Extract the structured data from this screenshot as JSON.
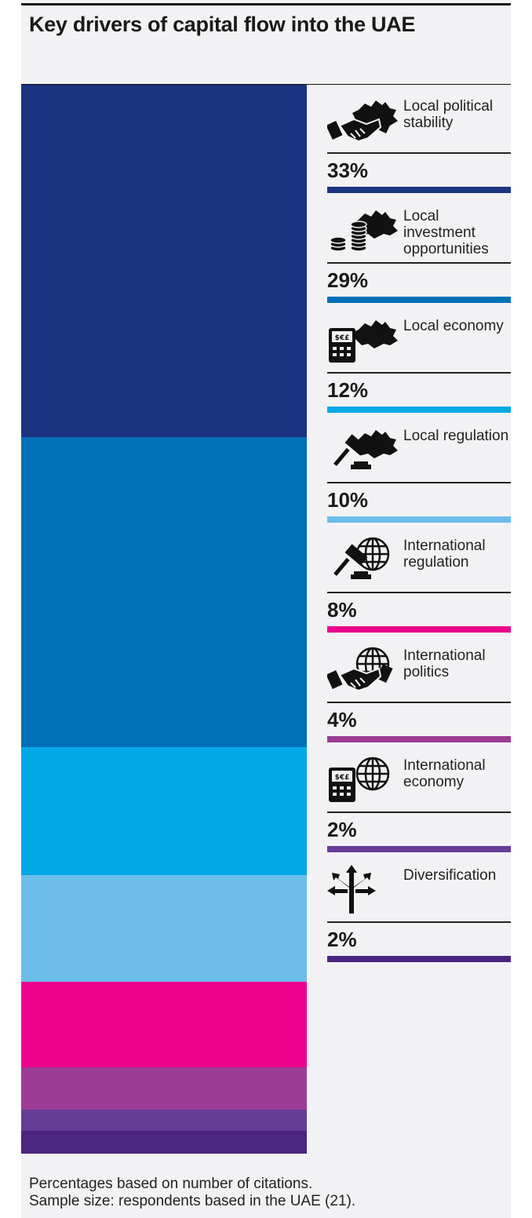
{
  "header": {
    "title": "Key drivers of capital flow into the UAE"
  },
  "colors": {
    "background": "#f2f2f4",
    "series": [
      "#1a3482",
      "#0070b8",
      "#00a9e6",
      "#6cbde9",
      "#ec008c",
      "#9c3c95",
      "#653d97",
      "#4b2580"
    ]
  },
  "chart_data": {
    "type": "bar",
    "stacked": true,
    "title": "Key drivers of capital flow into the UAE",
    "categories": [
      "Local political stability",
      "Local investment opportunities",
      "Local economy",
      "Local regulation",
      "International regulation",
      "International politics",
      "International economy",
      "Diversification"
    ],
    "values": [
      33,
      29,
      12,
      10,
      8,
      4,
      2,
      2
    ],
    "value_labels": [
      "33%",
      "29%",
      "12%",
      "10%",
      "8%",
      "4%",
      "2%",
      "2%"
    ],
    "icons": [
      "map-handshake-icon",
      "map-coins-icon",
      "map-calculator-icon",
      "map-gavel-icon",
      "globe-gavel-icon",
      "globe-handshake-icon",
      "globe-calculator-icon",
      "arrows-split-icon"
    ],
    "unit": "%"
  },
  "footnote": {
    "line1": "Percentages based on number of citations.",
    "line2": "Sample size: respondents based in the UAE (21)."
  }
}
